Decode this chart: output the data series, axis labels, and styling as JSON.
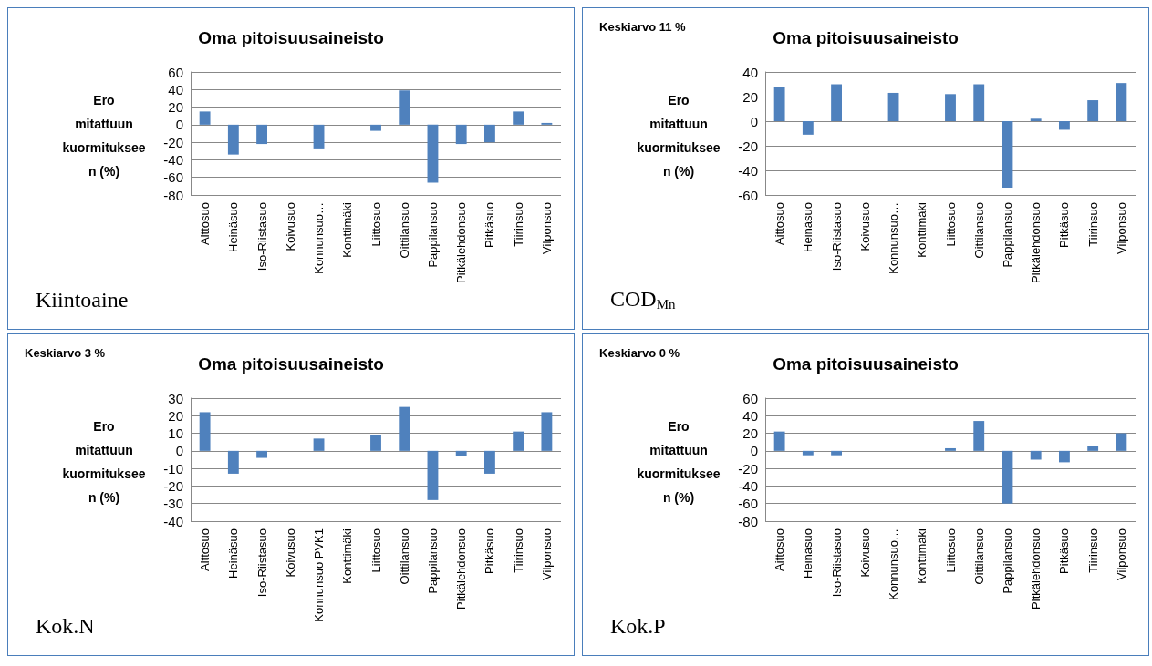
{
  "chart_data": [
    {
      "type": "bar",
      "title": "Oma pitoisuusaineisto",
      "ylabel": "Ero mitattuun kuormitukseen (%)",
      "annotations": [
        "Kiintoaine"
      ],
      "categories": [
        "Aittosuo",
        "Heinäsuo",
        "Iso-Riistasuo",
        "Koivusuo",
        "Konnunsuo…",
        "Konttimäki",
        "Liittosuo",
        "Oittilansuo",
        "Pappilansuo",
        "Pitkälehdonsuo",
        "Pitkäsuo",
        "Tiirinsuo",
        "Vilponsuo"
      ],
      "color": "#4f81bd",
      "values": [
        15,
        -34,
        -22,
        null,
        -27,
        null,
        -7,
        39,
        -66,
        -22,
        -20,
        15,
        2
      ],
      "ylim": [
        -80,
        60
      ],
      "yticks": [
        -80,
        -60,
        -40,
        -20,
        0,
        20,
        40,
        60
      ],
      "grid": "y"
    },
    {
      "type": "bar",
      "title": "Oma pitoisuusaineisto",
      "ylabel": "Ero mitattuun kuormitukseen (%)",
      "annotations": [
        "Keskiarvo 11 %",
        "COD$_{Mn}$"
      ],
      "categories": [
        "Aittosuo",
        "Heinäsuo",
        "Iso-Riistasuo",
        "Koivusuo",
        "Konnunsuo…",
        "Konttimäki",
        "Liittosuo",
        "Oittilansuo",
        "Pappilansuo",
        "Pitkälehdonsuo",
        "Pitkäsuo",
        "Tiirinsuo",
        "Vilponsuo"
      ],
      "color": "#4f81bd",
      "values": [
        28,
        -11,
        30,
        null,
        23,
        null,
        22,
        30,
        -54,
        2,
        -7,
        17,
        31
      ],
      "ylim": [
        -60,
        40
      ],
      "yticks": [
        -60,
        -40,
        -20,
        0,
        20,
        40
      ],
      "grid": "y"
    },
    {
      "type": "bar",
      "title": "Oma pitoisuusaineisto",
      "ylabel": "Ero mitattuun kuormitukseen (%)",
      "annotations": [
        "Keskiarvo 3 %",
        "Kok.N"
      ],
      "categories": [
        "Aittosuo",
        "Heinäsuo",
        "Iso-Riistasuo",
        "Koivusuo",
        "Konnunsuo PVK1",
        "Konttimäki",
        "Liittosuo",
        "Oittilansuo",
        "Pappilansuo",
        "Pitkälehdonsuo",
        "Pitkäsuo",
        "Tiirinsuo",
        "Vilponsuo"
      ],
      "color": "#4f81bd",
      "values": [
        22,
        -13,
        -4,
        null,
        7,
        null,
        9,
        25,
        -28,
        -3,
        -13,
        11,
        22
      ],
      "ylim": [
        -40,
        30
      ],
      "yticks": [
        -40,
        -30,
        -20,
        -10,
        0,
        10,
        20,
        30
      ],
      "grid": "y"
    },
    {
      "type": "bar",
      "title": "Oma pitoisuusaineisto",
      "ylabel": "Ero mitattuun kuormitukseen (%)",
      "annotations": [
        "Keskiarvo 0 %",
        "Kok.P"
      ],
      "categories": [
        "Aittosuo",
        "Heinäsuo",
        "Iso-Riistasuo",
        "Koivusuo",
        "Konnunsuo…",
        "Konttimäki",
        "Liittosuo",
        "Oittilansuo",
        "Pappilansuo",
        "Pitkälehdonsuo",
        "Pitkäsuo",
        "Tiirinsuo",
        "Vilponsuo"
      ],
      "color": "#4f81bd",
      "values": [
        22,
        -5,
        -5,
        null,
        null,
        null,
        3,
        34,
        -60,
        -10,
        -13,
        6,
        20
      ],
      "ylim": [
        -80,
        60
      ],
      "yticks": [
        -80,
        -60,
        -40,
        -20,
        0,
        20,
        40,
        60
      ],
      "grid": "y"
    }
  ]
}
